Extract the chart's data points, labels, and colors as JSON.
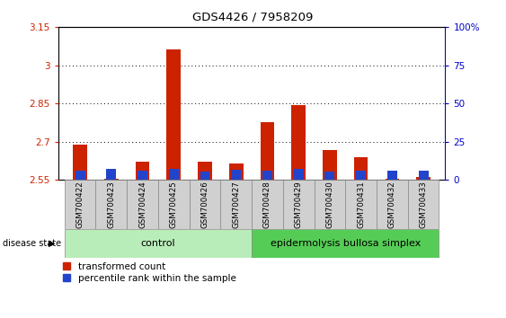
{
  "title": "GDS4426 / 7958209",
  "samples": [
    "GSM700422",
    "GSM700423",
    "GSM700424",
    "GSM700425",
    "GSM700426",
    "GSM700427",
    "GSM700428",
    "GSM700429",
    "GSM700430",
    "GSM700431",
    "GSM700432",
    "GSM700433"
  ],
  "red_values": [
    2.688,
    2.555,
    2.622,
    3.063,
    2.622,
    2.614,
    2.775,
    2.843,
    2.665,
    2.638,
    2.554,
    2.56
  ],
  "blue_tops": [
    2.585,
    2.592,
    2.585,
    2.592,
    2.582,
    2.59,
    2.585,
    2.592,
    2.582,
    2.585,
    2.585,
    2.585
  ],
  "ylim_left": [
    2.55,
    3.15
  ],
  "yticks_left": [
    2.55,
    2.7,
    2.85,
    3.0,
    3.15
  ],
  "ytick_labels_left": [
    "2.55",
    "2.7",
    "2.85",
    "3",
    "3.15"
  ],
  "ylim_right": [
    0,
    100
  ],
  "yticks_right": [
    0,
    25,
    50,
    75,
    100
  ],
  "ytick_labels_right": [
    "0",
    "25",
    "50",
    "75",
    "100%"
  ],
  "control_label": "control",
  "disease_label": "epidermolysis bullosa simplex",
  "disease_state_label": "disease state",
  "control_color": "#b8ecb8",
  "disease_color": "#55cc55",
  "bar_width": 0.45,
  "red_color": "#cc2200",
  "blue_color": "#2244cc",
  "left_tick_color": "#cc2200",
  "right_tick_color": "#0000cc",
  "base": 2.55,
  "legend_red": "transformed count",
  "legend_blue": "percentile rank within the sample",
  "n_control": 6,
  "n_total": 12
}
